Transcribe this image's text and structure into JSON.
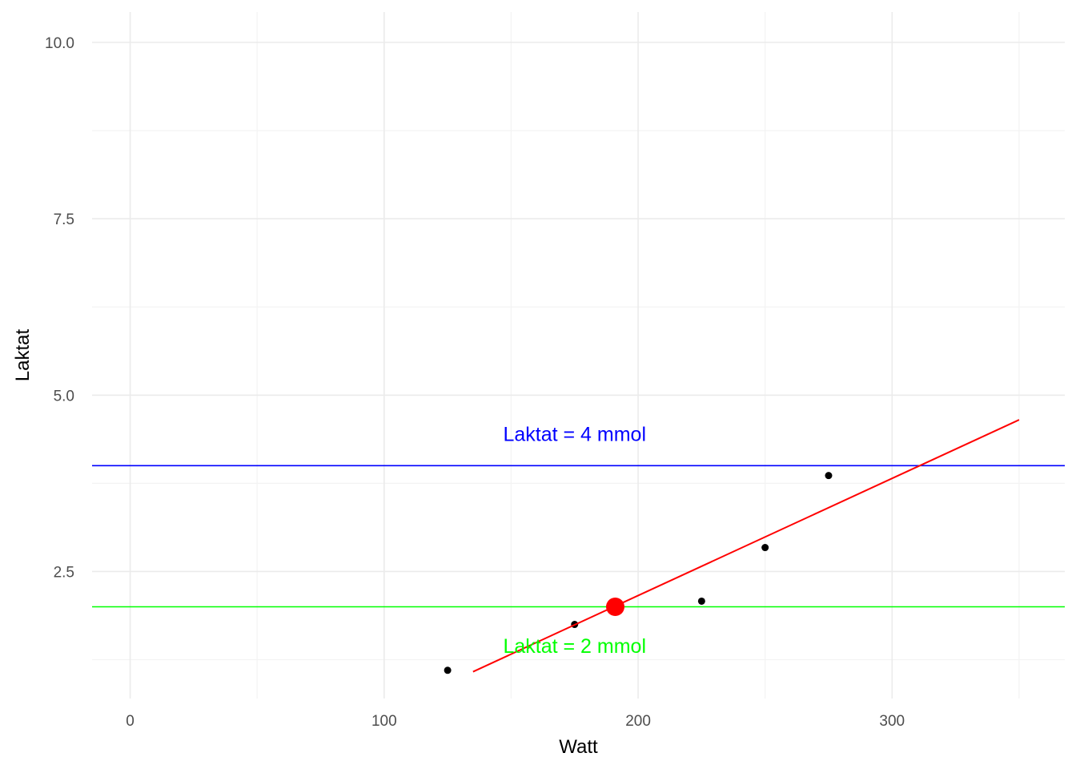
{
  "chart_data": {
    "type": "scatter",
    "title": "",
    "xlabel": "Watt",
    "ylabel": "Laktat",
    "xlim": [
      -15,
      368
    ],
    "ylim": [
      0.7,
      10.43
    ],
    "x_ticks": [
      0,
      100,
      200,
      300
    ],
    "x_tick_labels": [
      "0",
      "100",
      "200",
      "300"
    ],
    "y_ticks": [
      2.5,
      5.0,
      7.5,
      10.0
    ],
    "y_tick_labels": [
      "2.5",
      "5.0",
      "7.5",
      "10.0"
    ],
    "grid": true,
    "series": [
      {
        "type": "scatter",
        "color": "#000000",
        "points": [
          {
            "x": 125,
            "y": 1.1
          },
          {
            "x": 175,
            "y": 1.75
          },
          {
            "x": 225,
            "y": 2.08
          },
          {
            "x": 250,
            "y": 2.84
          },
          {
            "x": 275,
            "y": 3.86
          }
        ]
      },
      {
        "type": "line",
        "color": "#ff0000",
        "points": [
          {
            "x": 135,
            "y": 1.08
          },
          {
            "x": 350,
            "y": 4.65
          }
        ]
      },
      {
        "type": "highlight-point",
        "color": "#ff0000",
        "points": [
          {
            "x": 191,
            "y": 2.0
          }
        ]
      }
    ],
    "hlines": [
      {
        "y": 4,
        "color": "#0000ff",
        "label": "Laktat = 4 mmol",
        "label_x": 175,
        "label_y": 4.45
      },
      {
        "y": 2,
        "color": "#00ff00",
        "label": "Laktat = 2 mmol",
        "label_x": 175,
        "label_y": 1.45
      }
    ]
  }
}
